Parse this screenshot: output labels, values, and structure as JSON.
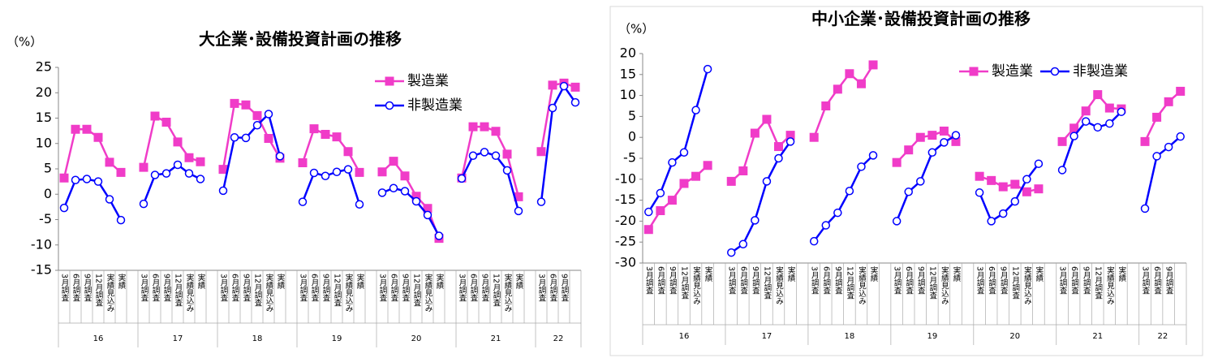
{
  "chart_data": [
    {
      "type": "line",
      "title": "大企業･設備投資計画の推移",
      "y_unit": "（%）",
      "categories": [
        "3月調査",
        "6月調査",
        "9月調査",
        "12月調査",
        "実績見込み",
        "実績",
        null,
        "3月調査",
        "6月調査",
        "9月調査",
        "12月調査",
        "実績見込み",
        "実績",
        null,
        "3月調査",
        "6月調査",
        "9月調査",
        "12月調査",
        "実績見込み",
        "実績",
        null,
        "3月調査",
        "6月調査",
        "9月調査",
        "12月調査",
        "実績見込み",
        "実績",
        null,
        "3月調査",
        "6月調査",
        "9月調査",
        "12月調査",
        "実績見込み",
        "実績",
        null,
        "3月調査",
        "6月調査",
        "9月調査",
        "12月調査",
        "実績見込み",
        "実績",
        null,
        "3月調査",
        "6月調査",
        "9月調査",
        null
      ],
      "groups": [
        "16",
        "17",
        "18",
        "19",
        "20",
        "21",
        "22"
      ],
      "ylim": [
        -15,
        25
      ],
      "yticks": [
        -15,
        -10,
        -5,
        0,
        5,
        10,
        15,
        20,
        25
      ],
      "legend": "right",
      "series": [
        {
          "name": "製造業",
          "color": "#f03cc8",
          "marker": "square",
          "values": [
            3.2,
            12.8,
            12.8,
            11.2,
            6.3,
            4.3,
            null,
            5.3,
            15.4,
            14.2,
            10.3,
            7.2,
            6.4,
            null,
            4.9,
            17.9,
            17.6,
            15.5,
            11.0,
            7.1,
            null,
            6.2,
            12.9,
            11.8,
            11.3,
            8.4,
            4.3,
            null,
            4.4,
            6.5,
            3.6,
            -0.4,
            -2.8,
            -8.7,
            null,
            3.2,
            13.3,
            13.3,
            12.4,
            7.9,
            -0.5,
            null,
            8.4,
            21.5,
            21.9,
            21.1
          ]
        },
        {
          "name": "非製造業",
          "color": "#0000ff",
          "marker": "circle",
          "values": [
            -2.7,
            2.8,
            3.0,
            2.5,
            -1.0,
            -5.1,
            null,
            -1.9,
            3.8,
            4.1,
            5.8,
            4.1,
            3.0,
            null,
            0.7,
            11.2,
            11.1,
            13.6,
            15.8,
            7.5,
            null,
            -1.5,
            4.2,
            3.6,
            4.4,
            4.9,
            -2.0,
            null,
            0.3,
            1.2,
            0.6,
            -1.4,
            -4.1,
            -8.2,
            null,
            3.1,
            7.6,
            8.3,
            7.6,
            4.7,
            -3.3,
            null,
            -1.5,
            17.0,
            21.3,
            18.1
          ]
        }
      ]
    },
    {
      "type": "line",
      "title": "中小企業･設備投資計画の推移",
      "y_unit": "（%）",
      "categories": [
        "3月調査",
        "6月調査",
        "9月調査",
        "12月調査",
        "実績見込み",
        "実績",
        null,
        "3月調査",
        "6月調査",
        "9月調査",
        "12月調査",
        "実績見込み",
        "実績",
        null,
        "3月調査",
        "6月調査",
        "9月調査",
        "12月調査",
        "実績見込み",
        "実績",
        null,
        "3月調査",
        "6月調査",
        "9月調査",
        "12月調査",
        "実績見込み",
        "実績",
        null,
        "3月調査",
        "6月調査",
        "9月調査",
        "12月調査",
        "実績見込み",
        "実績",
        null,
        "3月調査",
        "6月調査",
        "9月調査",
        "12月調査",
        "実績見込み",
        "実績",
        null,
        "3月調査",
        "6月調査",
        "9月調査",
        null
      ],
      "groups": [
        "16",
        "17",
        "18",
        "19",
        "20",
        "21",
        "22"
      ],
      "ylim": [
        -30,
        20
      ],
      "yticks": [
        -30,
        -25,
        -20,
        -15,
        -10,
        -5,
        0,
        5,
        10,
        15,
        20
      ],
      "legend": "top",
      "series": [
        {
          "name": "製造業",
          "color": "#f03cc8",
          "marker": "square",
          "values": [
            -22.0,
            -17.5,
            -15.0,
            -11.0,
            -9.3,
            -6.7,
            null,
            -10.5,
            -8.0,
            1.0,
            4.3,
            -2.2,
            0.5,
            null,
            0.0,
            7.5,
            11.5,
            15.2,
            12.8,
            17.3,
            null,
            -6.0,
            -3.0,
            0.0,
            0.5,
            1.5,
            -1.0,
            null,
            -9.3,
            -10.3,
            -11.8,
            -11.2,
            -13.0,
            -12.3,
            null,
            -1.0,
            2.2,
            6.3,
            10.2,
            7.0,
            6.8,
            null,
            -1.0,
            4.8,
            8.5,
            11.0
          ]
        },
        {
          "name": "非製造業",
          "color": "#0000ff",
          "marker": "circle",
          "values": [
            -17.8,
            -13.3,
            -6.0,
            -3.6,
            6.5,
            16.3,
            null,
            -27.5,
            -25.5,
            -19.8,
            -10.5,
            -5.0,
            -1.0,
            null,
            -24.8,
            -21.0,
            -18.0,
            -12.8,
            -7.0,
            -4.3,
            null,
            -20.0,
            -13.0,
            -10.5,
            -3.6,
            -1.2,
            0.5,
            null,
            -13.2,
            -20.0,
            -18.2,
            -15.3,
            -10.0,
            -6.3,
            null,
            -7.8,
            0.3,
            3.8,
            2.4,
            3.3,
            6.1,
            null,
            -17.0,
            -4.5,
            -2.3,
            0.2
          ]
        }
      ]
    }
  ]
}
